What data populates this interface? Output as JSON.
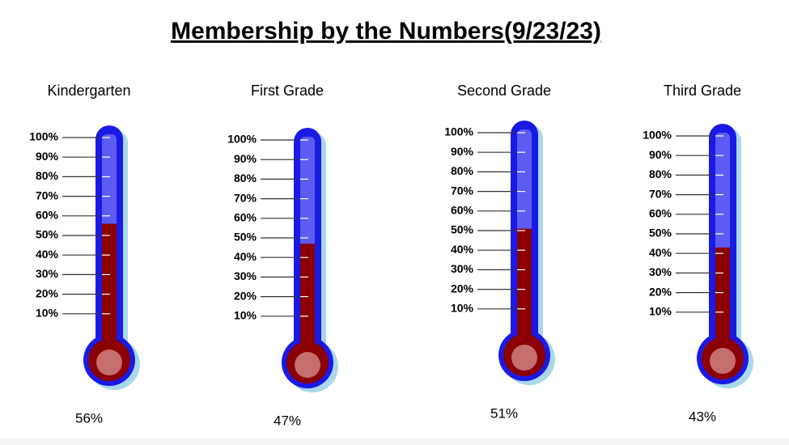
{
  "title": "Membership by the Numbers(9/23/23)",
  "chart_data": [
    {
      "type": "thermometer",
      "title": "Kindergarten",
      "values": [
        56
      ],
      "value_labels": [
        "56%"
      ],
      "color": "#8b0000",
      "ylim": [
        0,
        100
      ],
      "yticks": [
        {
          "value": 10,
          "label": "10%"
        },
        {
          "value": 20,
          "label": "20%"
        },
        {
          "value": 30,
          "label": "30%"
        },
        {
          "value": 40,
          "label": "40%"
        },
        {
          "value": 50,
          "label": "50%"
        },
        {
          "value": 60,
          "label": "60%"
        },
        {
          "value": 70,
          "label": "70%"
        },
        {
          "value": 80,
          "label": "80%"
        },
        {
          "value": 90,
          "label": "90%"
        },
        {
          "value": 100,
          "label": "100%"
        }
      ]
    },
    {
      "type": "thermometer",
      "title": "First Grade",
      "values": [
        47
      ],
      "value_labels": [
        "47%"
      ],
      "color": "#8b0000",
      "ylim": [
        0,
        100
      ],
      "yticks": [
        {
          "value": 10,
          "label": "10%"
        },
        {
          "value": 20,
          "label": "20%"
        },
        {
          "value": 30,
          "label": "30%"
        },
        {
          "value": 40,
          "label": "40%"
        },
        {
          "value": 50,
          "label": "50%"
        },
        {
          "value": 60,
          "label": "60%"
        },
        {
          "value": 70,
          "label": "70%"
        },
        {
          "value": 80,
          "label": "80%"
        },
        {
          "value": 90,
          "label": "90%"
        },
        {
          "value": 100,
          "label": "100%"
        }
      ]
    },
    {
      "type": "thermometer",
      "title": "Second Grade",
      "values": [
        51
      ],
      "value_labels": [
        "51%"
      ],
      "color": "#8b0000",
      "ylim": [
        0,
        100
      ],
      "yticks": [
        {
          "value": 10,
          "label": "10%"
        },
        {
          "value": 20,
          "label": "20%"
        },
        {
          "value": 30,
          "label": "30%"
        },
        {
          "value": 40,
          "label": "40%"
        },
        {
          "value": 50,
          "label": "50%"
        },
        {
          "value": 60,
          "label": "60%"
        },
        {
          "value": 70,
          "label": "70%"
        },
        {
          "value": 80,
          "label": "80%"
        },
        {
          "value": 90,
          "label": "90%"
        },
        {
          "value": 100,
          "label": "100%"
        }
      ]
    },
    {
      "type": "thermometer",
      "title": "Third Grade",
      "values": [
        43
      ],
      "value_labels": [
        "43%"
      ],
      "color": "#8b0000",
      "ylim": [
        0,
        100
      ],
      "yticks": [
        {
          "value": 10,
          "label": "10%"
        },
        {
          "value": 20,
          "label": "20%"
        },
        {
          "value": 30,
          "label": "30%"
        },
        {
          "value": 40,
          "label": "40%"
        },
        {
          "value": 50,
          "label": "50%"
        },
        {
          "value": 60,
          "label": "60%"
        },
        {
          "value": 70,
          "label": "70%"
        },
        {
          "value": 80,
          "label": "80%"
        },
        {
          "value": 90,
          "label": "90%"
        },
        {
          "value": 100,
          "label": "100%"
        }
      ]
    }
  ]
}
